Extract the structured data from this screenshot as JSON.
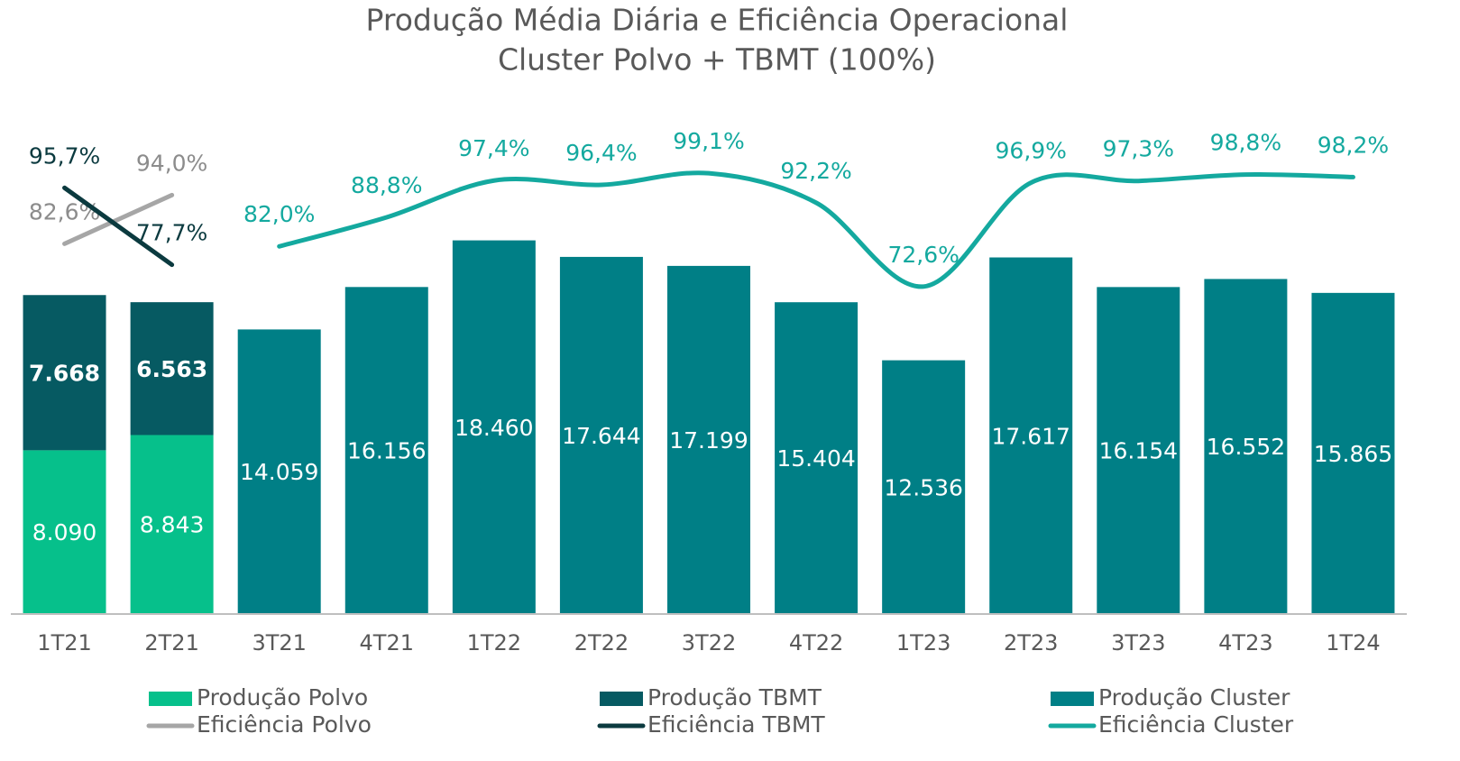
{
  "chart_data": {
    "type": "bar",
    "title": "Produção Média Diária e Eficiência Operacional",
    "subtitle": "Cluster Polvo + TBMT (100%)",
    "categories": [
      "1T21",
      "2T21",
      "3T21",
      "4T21",
      "1T22",
      "2T22",
      "3T22",
      "4T22",
      "1T23",
      "2T23",
      "3T23",
      "4T23",
      "1T24"
    ],
    "ylim": [
      0,
      24500
    ],
    "y2lim": [
      -4,
      112
    ],
    "series": [
      {
        "name": "Produção Polvo",
        "type": "bar",
        "color": "#06c08b",
        "values": [
          8090,
          8843,
          null,
          null,
          null,
          null,
          null,
          null,
          null,
          null,
          null,
          null,
          null
        ],
        "value_labels": [
          "8.090",
          "8.843",
          null,
          null,
          null,
          null,
          null,
          null,
          null,
          null,
          null,
          null,
          null
        ]
      },
      {
        "name": "Produção TBMT",
        "type": "bar",
        "color": "#065a62",
        "values": [
          7668,
          6563,
          null,
          null,
          null,
          null,
          null,
          null,
          null,
          null,
          null,
          null,
          null
        ],
        "value_labels": [
          "7.668",
          "6.563",
          null,
          null,
          null,
          null,
          null,
          null,
          null,
          null,
          null,
          null,
          null
        ]
      },
      {
        "name": "Produção Cluster",
        "type": "bar",
        "color": "#007f86",
        "values": [
          null,
          null,
          14059,
          16156,
          18460,
          17644,
          17199,
          15404,
          12536,
          17617,
          16154,
          16552,
          15865
        ],
        "value_labels": [
          null,
          null,
          "14.059",
          "16.156",
          "18.460",
          "17.644",
          "17.199",
          "15.404",
          "12.536",
          "17.617",
          "16.154",
          "16.552",
          "15.865"
        ]
      },
      {
        "name": "Eficiência Polvo",
        "type": "line",
        "axis": "y2",
        "color": "#a6a6a6",
        "values": [
          82.6,
          94.0,
          null,
          null,
          null,
          null,
          null,
          null,
          null,
          null,
          null,
          null,
          null
        ],
        "value_labels": [
          "82,6%",
          "94,0%",
          null,
          null,
          null,
          null,
          null,
          null,
          null,
          null,
          null,
          null,
          null
        ]
      },
      {
        "name": "Eficiência TBMT",
        "type": "line",
        "axis": "y2",
        "color": "#0b3a3f",
        "values": [
          95.7,
          77.7,
          null,
          null,
          null,
          null,
          null,
          null,
          null,
          null,
          null,
          null,
          null
        ],
        "value_labels": [
          "95,7%",
          "77,7%",
          null,
          null,
          null,
          null,
          null,
          null,
          null,
          null,
          null,
          null,
          null
        ]
      },
      {
        "name": "Eficiência Cluster",
        "type": "line",
        "axis": "y2",
        "color": "#14a99f",
        "values": [
          null,
          null,
          82.0,
          88.8,
          97.4,
          96.4,
          99.1,
          92.2,
          72.6,
          96.9,
          97.3,
          98.8,
          98.2
        ],
        "value_labels": [
          null,
          null,
          "82,0%",
          "88,8%",
          "97,4%",
          "96,4%",
          "99,1%",
          "92,2%",
          "72,6%",
          "96,9%",
          "97,3%",
          "98,8%",
          "98,2%"
        ]
      }
    ]
  }
}
